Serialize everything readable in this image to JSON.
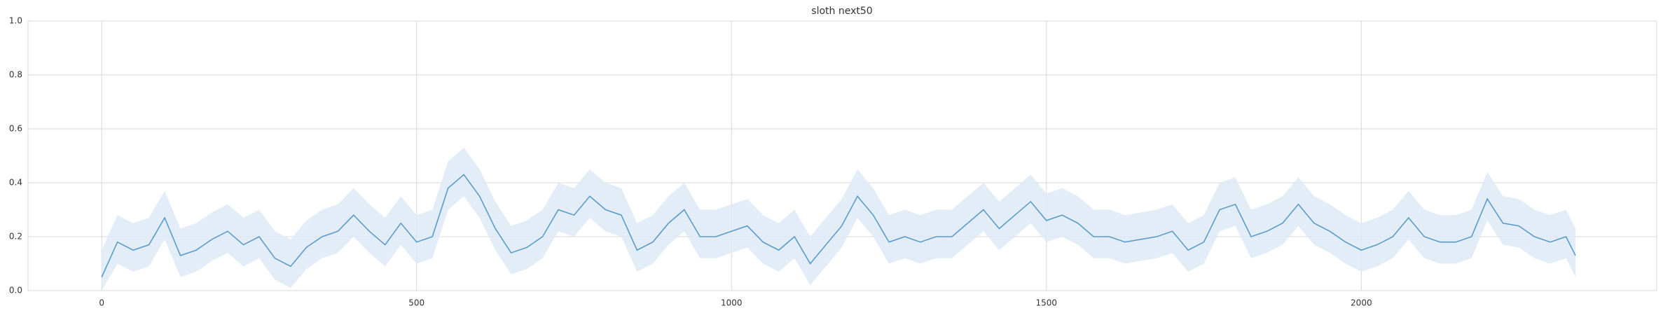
{
  "chart_data": {
    "type": "line",
    "title": "sloth next50",
    "x": [
      0,
      25,
      50,
      75,
      100,
      125,
      150,
      175,
      200,
      225,
      250,
      275,
      300,
      325,
      350,
      375,
      400,
      425,
      450,
      475,
      500,
      525,
      550,
      575,
      600,
      625,
      650,
      675,
      700,
      725,
      750,
      775,
      800,
      825,
      850,
      875,
      900,
      925,
      950,
      975,
      1000,
      1025,
      1050,
      1075,
      1100,
      1125,
      1150,
      1175,
      1200,
      1225,
      1250,
      1275,
      1300,
      1325,
      1350,
      1375,
      1400,
      1425,
      1450,
      1475,
      1500,
      1525,
      1550,
      1575,
      1600,
      1625,
      1650,
      1675,
      1700,
      1725,
      1750,
      1775,
      1800,
      1825,
      1850,
      1875,
      1900,
      1925,
      1950,
      1975,
      2000,
      2025,
      2050,
      2075,
      2100,
      2125,
      2150,
      2175,
      2200,
      2225,
      2250,
      2275,
      2300,
      2325,
      2340
    ],
    "values": [
      0.05,
      0.18,
      0.15,
      0.17,
      0.27,
      0.13,
      0.15,
      0.19,
      0.22,
      0.17,
      0.2,
      0.12,
      0.09,
      0.16,
      0.2,
      0.22,
      0.28,
      0.22,
      0.17,
      0.25,
      0.18,
      0.2,
      0.38,
      0.43,
      0.35,
      0.23,
      0.14,
      0.16,
      0.2,
      0.3,
      0.28,
      0.35,
      0.3,
      0.28,
      0.15,
      0.18,
      0.25,
      0.3,
      0.2,
      0.2,
      0.22,
      0.24,
      0.18,
      0.15,
      0.2,
      0.1,
      0.17,
      0.24,
      0.35,
      0.28,
      0.18,
      0.2,
      0.18,
      0.2,
      0.2,
      0.25,
      0.3,
      0.23,
      0.28,
      0.33,
      0.26,
      0.28,
      0.25,
      0.2,
      0.2,
      0.18,
      0.19,
      0.2,
      0.22,
      0.15,
      0.18,
      0.3,
      0.32,
      0.2,
      0.22,
      0.25,
      0.32,
      0.25,
      0.22,
      0.18,
      0.15,
      0.17,
      0.2,
      0.27,
      0.2,
      0.18,
      0.18,
      0.2,
      0.34,
      0.25,
      0.24,
      0.2,
      0.18,
      0.2,
      0.13
    ],
    "lower": [
      0.0,
      0.1,
      0.07,
      0.09,
      0.19,
      0.05,
      0.07,
      0.11,
      0.14,
      0.09,
      0.12,
      0.04,
      0.01,
      0.08,
      0.12,
      0.14,
      0.2,
      0.14,
      0.09,
      0.17,
      0.1,
      0.12,
      0.3,
      0.35,
      0.27,
      0.15,
      0.06,
      0.08,
      0.12,
      0.22,
      0.2,
      0.27,
      0.22,
      0.2,
      0.07,
      0.1,
      0.17,
      0.22,
      0.12,
      0.12,
      0.14,
      0.16,
      0.1,
      0.07,
      0.12,
      0.02,
      0.09,
      0.16,
      0.27,
      0.2,
      0.1,
      0.12,
      0.1,
      0.12,
      0.12,
      0.17,
      0.22,
      0.15,
      0.2,
      0.25,
      0.18,
      0.2,
      0.17,
      0.12,
      0.12,
      0.1,
      0.11,
      0.12,
      0.14,
      0.07,
      0.1,
      0.22,
      0.24,
      0.12,
      0.14,
      0.17,
      0.24,
      0.17,
      0.14,
      0.1,
      0.07,
      0.09,
      0.12,
      0.19,
      0.12,
      0.1,
      0.1,
      0.12,
      0.26,
      0.17,
      0.16,
      0.12,
      0.1,
      0.12,
      0.05
    ],
    "upper": [
      0.15,
      0.28,
      0.25,
      0.27,
      0.37,
      0.23,
      0.25,
      0.29,
      0.32,
      0.27,
      0.3,
      0.22,
      0.19,
      0.26,
      0.3,
      0.32,
      0.38,
      0.32,
      0.27,
      0.35,
      0.28,
      0.3,
      0.48,
      0.53,
      0.45,
      0.33,
      0.24,
      0.26,
      0.3,
      0.4,
      0.38,
      0.45,
      0.4,
      0.38,
      0.25,
      0.28,
      0.35,
      0.4,
      0.3,
      0.3,
      0.32,
      0.34,
      0.28,
      0.25,
      0.3,
      0.2,
      0.27,
      0.34,
      0.45,
      0.38,
      0.28,
      0.3,
      0.28,
      0.3,
      0.3,
      0.35,
      0.4,
      0.33,
      0.38,
      0.43,
      0.36,
      0.38,
      0.35,
      0.3,
      0.3,
      0.28,
      0.29,
      0.3,
      0.32,
      0.25,
      0.28,
      0.4,
      0.42,
      0.3,
      0.32,
      0.35,
      0.42,
      0.35,
      0.32,
      0.28,
      0.25,
      0.27,
      0.3,
      0.37,
      0.3,
      0.28,
      0.28,
      0.3,
      0.44,
      0.35,
      0.34,
      0.3,
      0.28,
      0.3,
      0.23
    ],
    "color": "#5b9bc8",
    "band_color": "#dce9f5",
    "xlim": [
      -117,
      2469
    ],
    "ylim": [
      0,
      1
    ],
    "xticks": [
      0,
      500,
      1000,
      1500,
      2000
    ],
    "yticks": [
      {
        "value": 0,
        "label": "0.0"
      },
      0.2,
      0.4,
      0.6,
      0.8,
      {
        "value": 1,
        "label": "1.0"
      }
    ],
    "grid": true
  }
}
